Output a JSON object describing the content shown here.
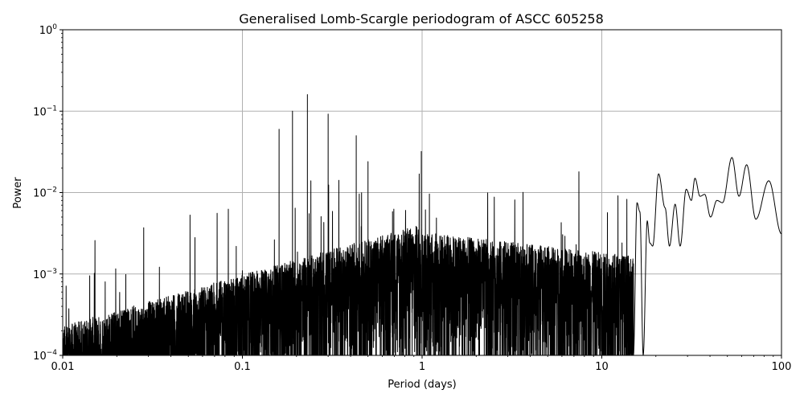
{
  "chart_data": {
    "type": "line",
    "title": "Generalised Lomb-Scargle periodogram of ASCC 605258",
    "xlabel": "Period (days)",
    "ylabel": "Power",
    "x_scale": "log",
    "y_scale": "log",
    "xlim": [
      0.01,
      100
    ],
    "ylim": [
      0.0001,
      1
    ],
    "grid": true,
    "x_ticks": [
      {
        "value": 0.01,
        "label": "0.01"
      },
      {
        "value": 0.1,
        "label": "0.1"
      },
      {
        "value": 1,
        "label": "1"
      },
      {
        "value": 10,
        "label": "10"
      },
      {
        "value": 100,
        "label": "100"
      }
    ],
    "y_ticks": [
      {
        "value": 0.0001,
        "base": "10",
        "exp": "−4"
      },
      {
        "value": 0.001,
        "base": "10",
        "exp": "−3"
      },
      {
        "value": 0.01,
        "base": "10",
        "exp": "−2"
      },
      {
        "value": 0.1,
        "base": "10",
        "exp": "−1"
      },
      {
        "value": 1,
        "base": "10",
        "exp": "0"
      }
    ],
    "series": [
      {
        "color": "#000000",
        "peaks": [
          {
            "period": 0.16,
            "power": 0.06
          },
          {
            "period": 0.19,
            "power": 0.1
          },
          {
            "period": 0.23,
            "power": 0.16
          },
          {
            "period": 0.3,
            "power": 0.092
          },
          {
            "period": 0.43,
            "power": 0.05
          },
          {
            "period": 0.99,
            "power": 0.032
          },
          {
            "period": 0.5,
            "power": 0.024
          }
        ],
        "smooth_tail": [
          [
            15.0,
            0.0001
          ],
          [
            15.7,
            0.0075
          ],
          [
            16.3,
            0.0058
          ],
          [
            17.0,
            0.0001
          ],
          [
            17.9,
            0.0045
          ],
          [
            18.5,
            0.0024
          ],
          [
            19.2,
            0.0022
          ],
          [
            20.7,
            0.017
          ],
          [
            22.5,
            0.0065
          ],
          [
            23.8,
            0.0022
          ],
          [
            25.6,
            0.0072
          ],
          [
            27.3,
            0.0022
          ],
          [
            29.5,
            0.011
          ],
          [
            31.5,
            0.008
          ],
          [
            33.0,
            0.015
          ],
          [
            35.2,
            0.009
          ],
          [
            37.4,
            0.0095
          ],
          [
            40.3,
            0.005
          ],
          [
            43.7,
            0.008
          ],
          [
            47.0,
            0.0075
          ],
          [
            53.0,
            0.027
          ],
          [
            58.0,
            0.009
          ],
          [
            64.0,
            0.022
          ],
          [
            72.0,
            0.0047
          ],
          [
            85.0,
            0.014
          ],
          [
            100.0,
            0.0031
          ]
        ]
      }
    ]
  }
}
